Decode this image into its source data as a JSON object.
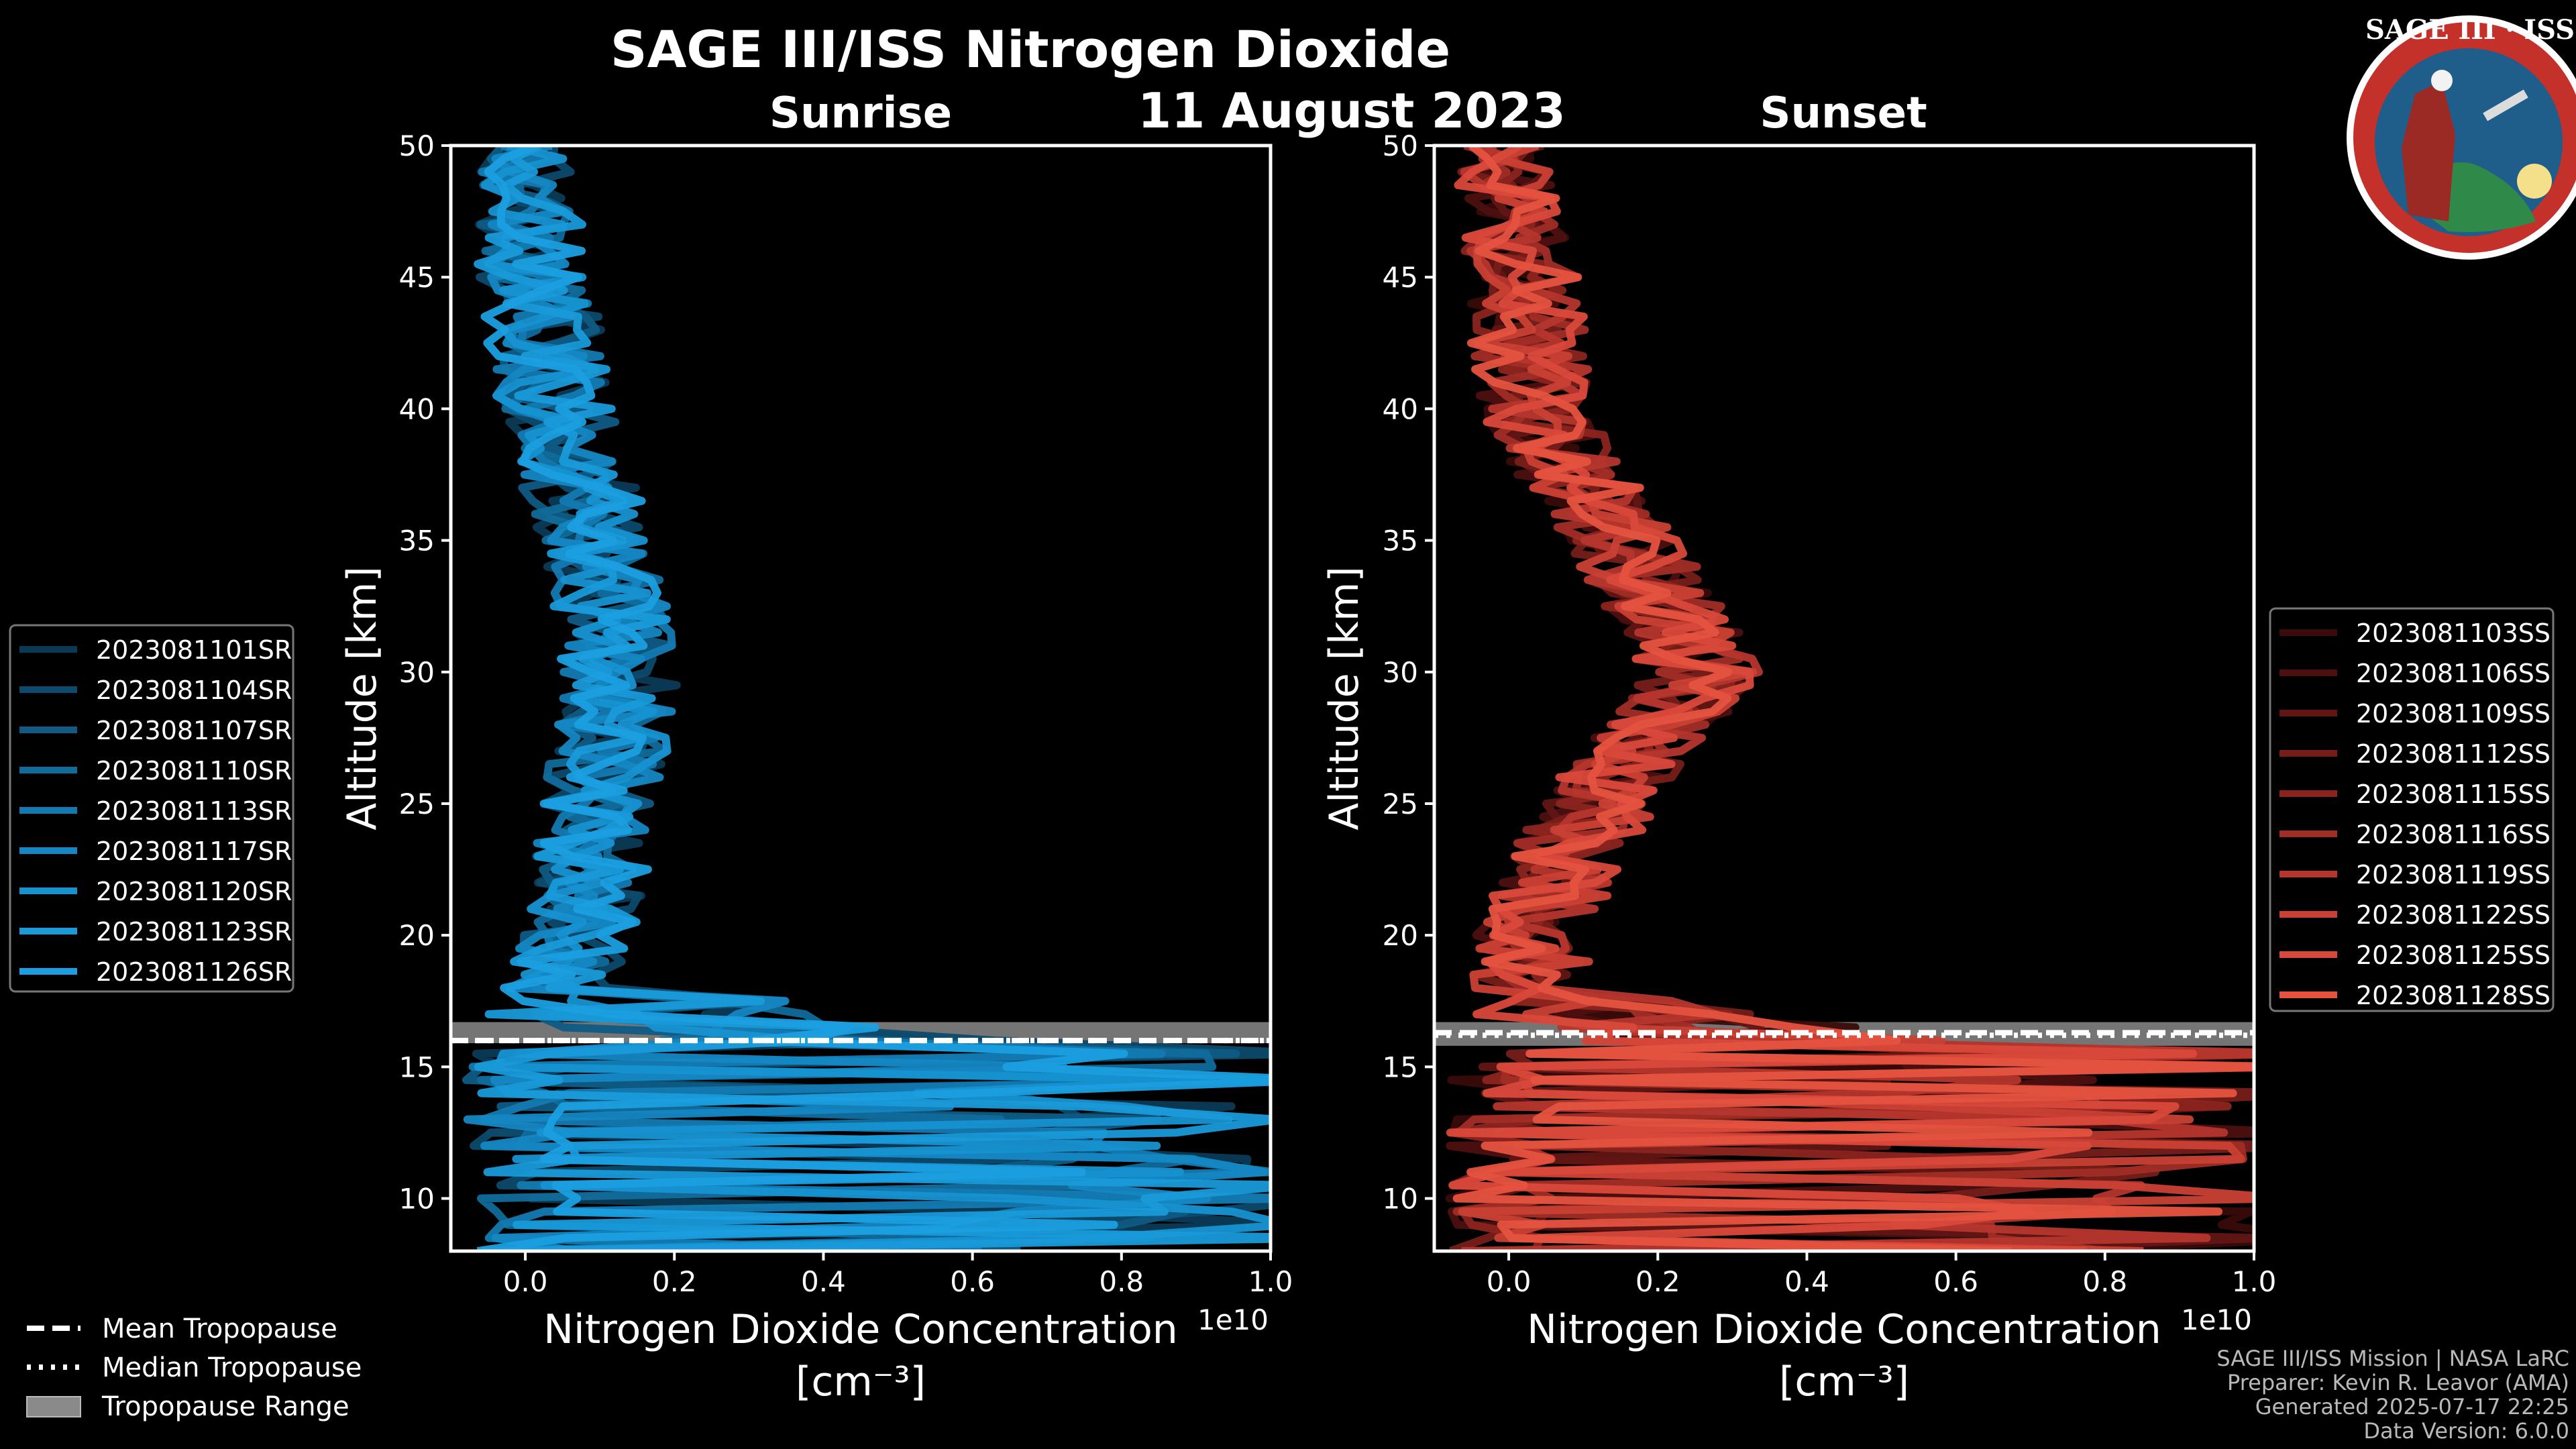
{
  "figure": {
    "title": "SAGE III/ISS Nitrogen Dioxide",
    "date": "11 August 2023",
    "logo_text": "SAGE III · ISS",
    "footer": [
      "SAGE III/ISS Mission | NASA LaRC",
      "Preparer: Kevin R. Leavor (AMA)",
      "Generated 2025-07-17 22:25",
      "Data Version: 6.0.0"
    ],
    "tropopause_legend": [
      {
        "label": "Mean Tropopause",
        "style": "dashed"
      },
      {
        "label": "Median Tropopause",
        "style": "dotted"
      },
      {
        "label": "Tropopause Range",
        "style": "band"
      }
    ]
  },
  "chart_data": [
    {
      "type": "line",
      "title": "Sunrise",
      "xlabel": "Nitrogen Dioxide Concentration",
      "xlabel_unit": "[cm⁻³]",
      "ylabel": "Altitude [km]",
      "xlim": [
        -0.1,
        1.0
      ],
      "ylim": [
        8,
        50
      ],
      "x_scale_label": "1e10",
      "x_ticks": [
        0.0,
        0.2,
        0.4,
        0.6,
        0.8,
        1.0
      ],
      "x_tick_labels": [
        "0.0",
        "0.2",
        "0.4",
        "0.6",
        "0.8",
        "1.0"
      ],
      "y_ticks": [
        10,
        15,
        20,
        25,
        30,
        35,
        40,
        45,
        50
      ],
      "tropopause": {
        "mean": 16.0,
        "median": 16.0,
        "range": [
          15.9,
          16.7
        ]
      },
      "series_colors": [
        "#0b3a56",
        "#0d4a6d",
        "#0f5b84",
        "#116b9b",
        "#137ab1",
        "#1587c3",
        "#1792d1",
        "#199ad9",
        "#1b9fe0"
      ],
      "series": [
        {
          "name": "2023081101SR"
        },
        {
          "name": "2023081104SR"
        },
        {
          "name": "2023081107SR"
        },
        {
          "name": "2023081110SR"
        },
        {
          "name": "2023081113SR"
        },
        {
          "name": "2023081117SR"
        },
        {
          "name": "2023081120SR"
        },
        {
          "name": "2023081123SR"
        },
        {
          "name": "2023081126SR"
        }
      ],
      "profile_guide": {
        "altitude": [
          8,
          10,
          12,
          14,
          16,
          17,
          18,
          20,
          22,
          25,
          28,
          30,
          32,
          35,
          38,
          40,
          42,
          45,
          48,
          50
        ],
        "no2_center": [
          0.5,
          0.5,
          0.5,
          0.5,
          0.3,
          0.1,
          0.05,
          0.07,
          0.09,
          0.1,
          0.12,
          0.13,
          0.12,
          0.1,
          0.06,
          0.04,
          0.03,
          0.01,
          0.005,
          0.0
        ]
      }
    },
    {
      "type": "line",
      "title": "Sunset",
      "xlabel": "Nitrogen Dioxide Concentration",
      "xlabel_unit": "[cm⁻³]",
      "ylabel": "Altitude [km]",
      "xlim": [
        -0.1,
        1.0
      ],
      "ylim": [
        8,
        50
      ],
      "x_scale_label": "1e10",
      "x_ticks": [
        0.0,
        0.2,
        0.4,
        0.6,
        0.8,
        1.0
      ],
      "x_tick_labels": [
        "0.0",
        "0.2",
        "0.4",
        "0.6",
        "0.8",
        "1.0"
      ],
      "y_ticks": [
        10,
        15,
        20,
        25,
        30,
        35,
        40,
        45,
        50
      ],
      "tropopause": {
        "mean": 16.3,
        "median": 16.2,
        "range": [
          15.8,
          16.7
        ]
      },
      "series_colors": [
        "#3a0b0b",
        "#4d1010",
        "#611614",
        "#761d19",
        "#8b241f",
        "#a02d26",
        "#b5362d",
        "#c94034",
        "#d9493b",
        "#e5533f"
      ],
      "series": [
        {
          "name": "2023081103SS"
        },
        {
          "name": "2023081106SS"
        },
        {
          "name": "2023081109SS"
        },
        {
          "name": "2023081112SS"
        },
        {
          "name": "2023081115SS"
        },
        {
          "name": "2023081116SS"
        },
        {
          "name": "2023081119SS"
        },
        {
          "name": "2023081122SS"
        },
        {
          "name": "2023081125SS"
        },
        {
          "name": "2023081128SS"
        }
      ],
      "profile_guide": {
        "altitude": [
          8,
          10,
          12,
          14,
          16,
          17,
          18,
          20,
          22,
          25,
          28,
          30,
          32,
          35,
          38,
          40,
          42,
          45,
          48,
          50
        ],
        "no2_center": [
          0.5,
          0.5,
          0.5,
          0.4,
          0.25,
          0.08,
          0.03,
          0.03,
          0.06,
          0.12,
          0.2,
          0.26,
          0.22,
          0.15,
          0.07,
          0.04,
          0.03,
          0.02,
          0.0,
          -0.01
        ]
      }
    }
  ]
}
